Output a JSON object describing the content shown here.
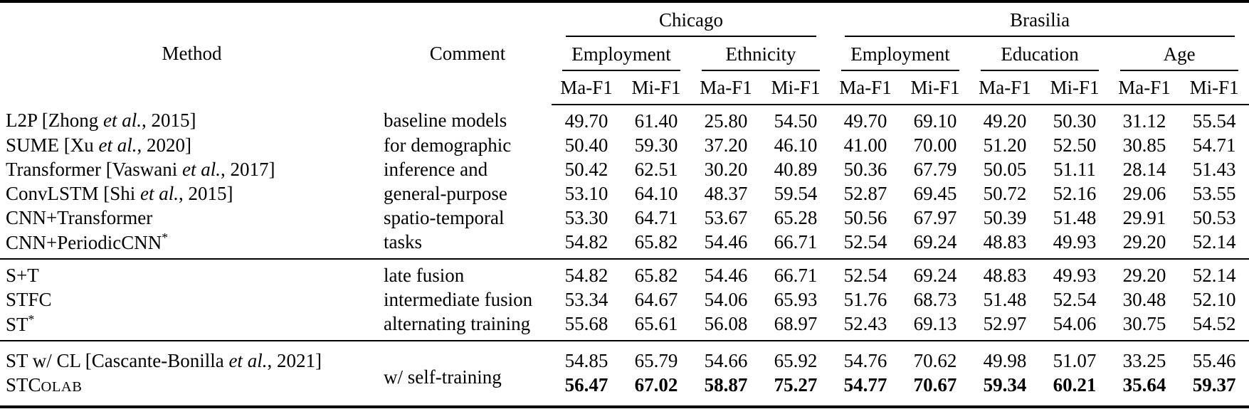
{
  "table": {
    "header": {
      "method": "Method",
      "comment": "Comment",
      "groups": [
        {
          "label": "Chicago",
          "subgroups": [
            "Employment",
            "Ethnicity"
          ]
        },
        {
          "label": "Brasilia",
          "subgroups": [
            "Employment",
            "Education",
            "Age"
          ]
        }
      ],
      "metrics": [
        "Ma-F1",
        "Mi-F1"
      ]
    },
    "blocks": [
      {
        "rows": [
          {
            "method_parts": [
              {
                "t": "L2P [Zhong "
              },
              {
                "t": "et al.",
                "s": "i"
              },
              {
                "t": ", 2015]"
              }
            ],
            "comment": "baseline models",
            "values": [
              "49.70",
              "61.40",
              "25.80",
              "54.50",
              "49.70",
              "69.10",
              "49.20",
              "50.30",
              "31.12",
              "55.54"
            ]
          },
          {
            "method_parts": [
              {
                "t": "SUME [Xu "
              },
              {
                "t": "et al.",
                "s": "i"
              },
              {
                "t": ", 2020]"
              }
            ],
            "comment": "for demographic",
            "values": [
              "50.40",
              "59.30",
              "37.20",
              "46.10",
              "41.00",
              "70.00",
              "51.20",
              "52.50",
              "30.85",
              "54.71"
            ]
          },
          {
            "method_parts": [
              {
                "t": "Transformer [Vaswani "
              },
              {
                "t": "et al.",
                "s": "i"
              },
              {
                "t": ", 2017]"
              }
            ],
            "comment": "inference and",
            "values": [
              "50.42",
              "62.51",
              "30.20",
              "40.89",
              "50.36",
              "67.79",
              "50.05",
              "51.11",
              "28.14",
              "51.43"
            ]
          },
          {
            "method_parts": [
              {
                "t": "ConvLSTM [Shi "
              },
              {
                "t": "et al.",
                "s": "i"
              },
              {
                "t": ", 2015]"
              }
            ],
            "comment": "general-purpose",
            "values": [
              "53.10",
              "64.10",
              "48.37",
              "59.54",
              "52.87",
              "69.45",
              "50.72",
              "52.16",
              "29.06",
              "53.55"
            ]
          },
          {
            "method_parts": [
              {
                "t": "CNN+Transformer"
              }
            ],
            "comment": "spatio-temporal",
            "values": [
              "53.30",
              "64.71",
              "53.67",
              "65.28",
              "50.56",
              "67.97",
              "50.39",
              "51.48",
              "29.91",
              "50.53"
            ]
          },
          {
            "method_parts": [
              {
                "t": "CNN+PeriodicCNN"
              },
              {
                "t": "*",
                "s": "sup"
              }
            ],
            "comment": "tasks",
            "values": [
              "54.82",
              "65.82",
              "54.46",
              "66.71",
              "52.54",
              "69.24",
              "48.83",
              "49.93",
              "29.20",
              "52.14"
            ]
          }
        ]
      },
      {
        "rows": [
          {
            "method_parts": [
              {
                "t": "S+T"
              }
            ],
            "comment": "late fusion",
            "values": [
              "54.82",
              "65.82",
              "54.46",
              "66.71",
              "52.54",
              "69.24",
              "48.83",
              "49.93",
              "29.20",
              "52.14"
            ]
          },
          {
            "method_parts": [
              {
                "t": "STFC"
              }
            ],
            "comment": "intermediate fusion",
            "values": [
              "53.34",
              "64.67",
              "54.06",
              "65.93",
              "51.76",
              "68.73",
              "51.48",
              "52.54",
              "30.48",
              "52.10"
            ]
          },
          {
            "method_parts": [
              {
                "t": "ST"
              },
              {
                "t": "*",
                "s": "sup"
              }
            ],
            "comment": "alternating training",
            "values": [
              "55.68",
              "65.61",
              "56.08",
              "68.97",
              "52.43",
              "69.13",
              "52.97",
              "54.06",
              "30.75",
              "54.52"
            ]
          }
        ]
      },
      {
        "merged_comment": "w/ self-training",
        "rows": [
          {
            "method_parts": [
              {
                "t": "ST w/ CL [Cascante-Bonilla "
              },
              {
                "t": "et al.",
                "s": "i"
              },
              {
                "t": ", 2021]"
              }
            ],
            "values": [
              "54.85",
              "65.79",
              "54.66",
              "65.92",
              "54.76",
              "70.62",
              "49.98",
              "51.07",
              "33.25",
              "55.46"
            ]
          },
          {
            "method_parts": [
              {
                "t": "STC"
              },
              {
                "t": "OLAB",
                "s": "sc"
              }
            ],
            "bold": true,
            "values": [
              "56.47",
              "67.02",
              "58.87",
              "75.27",
              "54.77",
              "70.67",
              "59.34",
              "60.21",
              "35.64",
              "59.37"
            ]
          }
        ]
      }
    ]
  }
}
